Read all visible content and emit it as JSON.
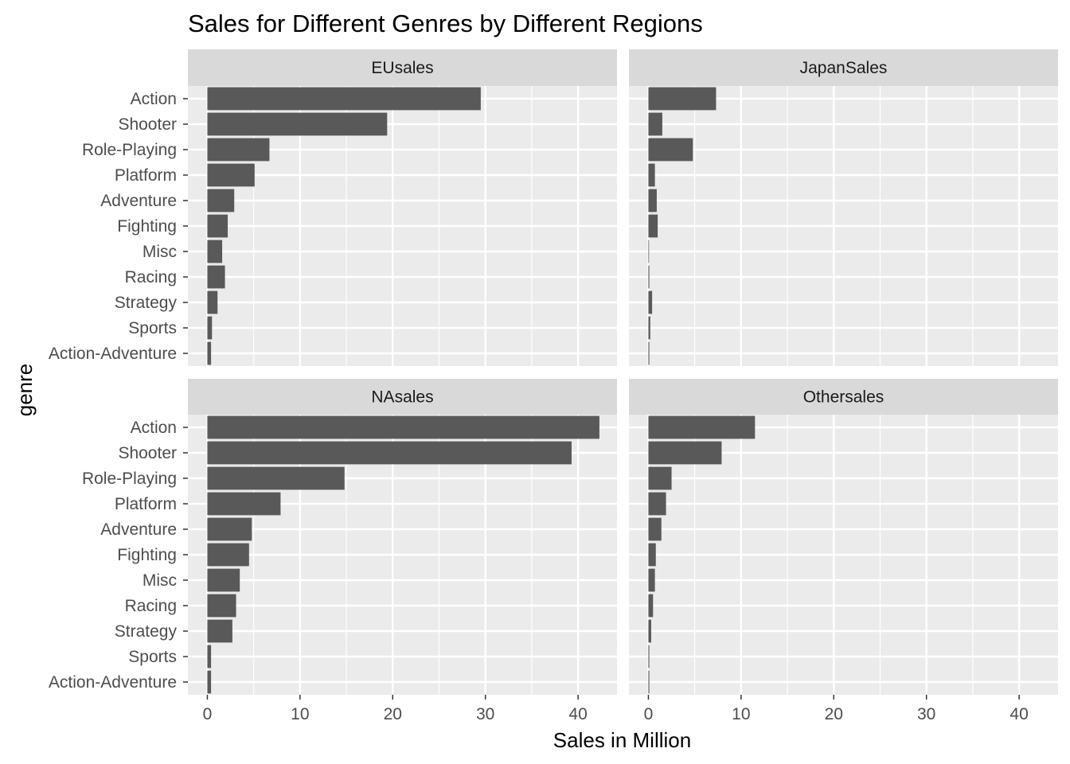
{
  "chart_data": {
    "type": "bar",
    "orientation": "horizontal",
    "facet_layout": "2x2",
    "title": "Sales for Different Genres by Different Regions",
    "xlabel": "Sales in Million",
    "ylabel": "genre",
    "xlim": [
      -2.1,
      44.2
    ],
    "xticks": [
      0,
      10,
      20,
      30,
      40
    ],
    "grid": true,
    "bar_color": "#595959",
    "panel_background": "#ebebeb",
    "strip_background": "#d9d9d9",
    "categories": [
      "Action",
      "Shooter",
      "Role-Playing",
      "Platform",
      "Adventure",
      "Fighting",
      "Misc",
      "Racing",
      "Strategy",
      "Sports",
      "Action-Adventure"
    ],
    "series": [
      {
        "name": "EUsales",
        "values": [
          29.5,
          19.4,
          6.7,
          5.1,
          2.9,
          2.2,
          1.6,
          1.9,
          1.1,
          0.5,
          0.4
        ]
      },
      {
        "name": "JapanSales",
        "values": [
          7.3,
          1.5,
          4.8,
          0.7,
          0.9,
          1.0,
          0.0,
          0.1,
          0.4,
          0.2,
          0.1
        ]
      },
      {
        "name": "NAsales",
        "values": [
          42.3,
          39.3,
          14.8,
          7.9,
          4.8,
          4.5,
          3.5,
          3.1,
          2.7,
          0.4,
          0.4
        ]
      },
      {
        "name": "Othersales",
        "values": [
          11.5,
          7.9,
          2.5,
          1.9,
          1.4,
          0.8,
          0.7,
          0.5,
          0.3,
          0.1,
          0.1
        ]
      }
    ]
  }
}
